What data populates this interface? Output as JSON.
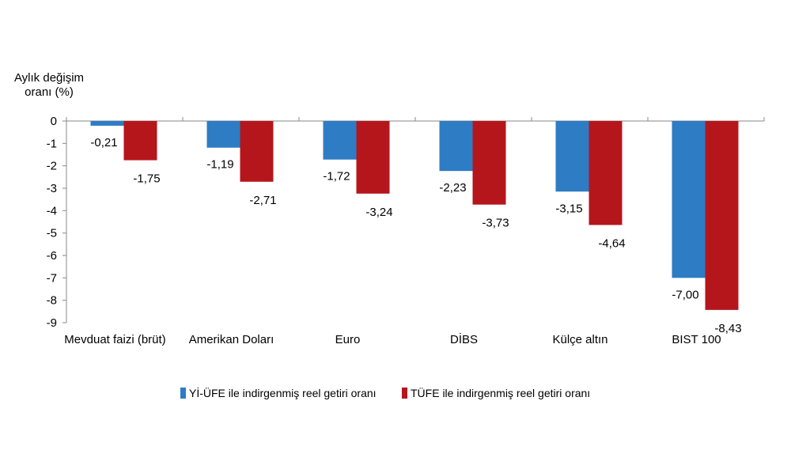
{
  "chart_data": {
    "type": "bar",
    "ylabel_lines": [
      "Aylık değişim",
      "oranı (%)"
    ],
    "ylim": [
      -9,
      0
    ],
    "yticks": [
      0,
      -1,
      -2,
      -3,
      -4,
      -5,
      -6,
      -7,
      -8,
      -9
    ],
    "categories": [
      "Mevduat faizi (brüt)",
      "Amerikan Doları",
      "Euro",
      "DİBS",
      "Külçe altın",
      "BIST 100"
    ],
    "series": [
      {
        "name": "Yİ-ÜFE ile indirgenmiş reel getiri oranı",
        "color": "#2e7cc4",
        "values": [
          -0.21,
          -1.19,
          -1.72,
          -2.23,
          -3.15,
          -7.0
        ],
        "labels": [
          "-0,21",
          "-1,19",
          "-1,72",
          "-2,23",
          "-3,15",
          "-7,00"
        ]
      },
      {
        "name": "TÜFE ile indirgenmiş reel getiri oranı",
        "color": "#b5161c",
        "values": [
          -1.75,
          -2.71,
          -3.24,
          -3.73,
          -4.64,
          -8.43
        ],
        "labels": [
          "-1,75",
          "-2,71",
          "-3,24",
          "-3,73",
          "-4,64",
          "-8,43"
        ]
      }
    ],
    "legend_position": "bottom",
    "grid": false
  }
}
